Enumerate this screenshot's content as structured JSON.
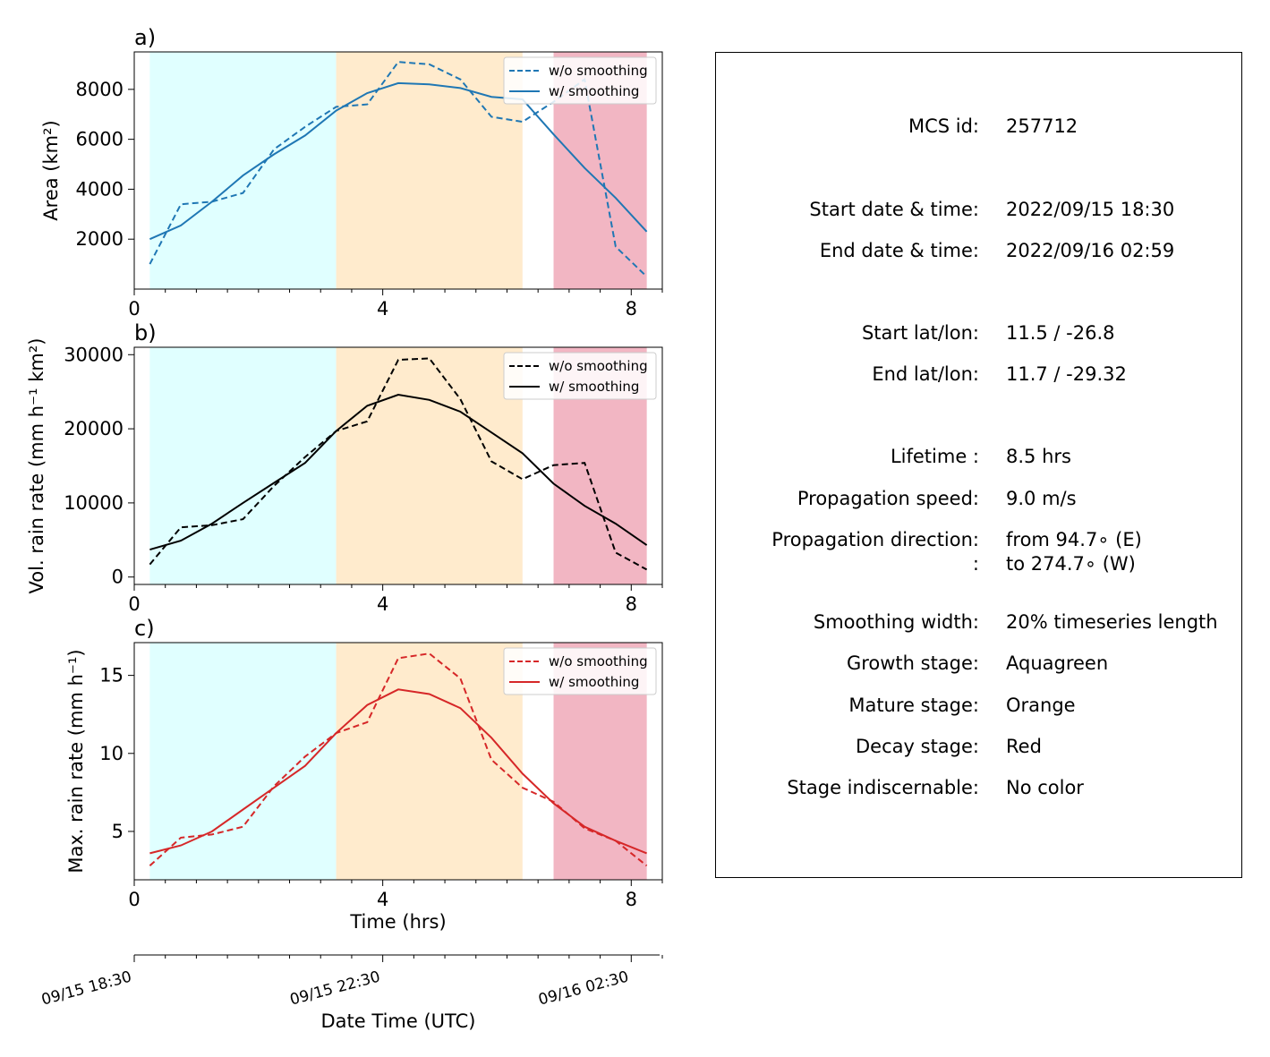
{
  "colors": {
    "growth": "#e0ffff",
    "mature": "#ffebcd",
    "decay": "#f2b6c3",
    "area": "#1f77b4",
    "volrain": "#000000",
    "maxrain": "#d62728"
  },
  "xaxis": {
    "label": "Time (hrs)",
    "ticks": [
      0,
      4,
      8
    ],
    "minor_ticks": [
      0.5,
      1,
      1.5,
      2,
      2.5,
      3,
      3.5,
      4.5,
      5,
      5.5,
      6,
      6.5,
      7,
      7.5,
      8.5
    ],
    "range": [
      0,
      8.5
    ]
  },
  "datetime_axis": {
    "label": "Date Time (UTC)",
    "tick_labels": [
      {
        "x": 0,
        "label": "09/15 18:30"
      },
      {
        "x": 4,
        "label": "09/15 22:30"
      },
      {
        "x": 8,
        "label": "09/16 02:30"
      }
    ],
    "minor_ticks": [
      0.5,
      1,
      1.5,
      2,
      2.5,
      3,
      3.5,
      4.5,
      5,
      5.5,
      6,
      6.5,
      7,
      7.5,
      8.5
    ]
  },
  "chart_data": [
    {
      "type": "line",
      "panel_label": "a)",
      "ylabel": "Area  (km²)",
      "xlim": [
        0,
        8.5
      ],
      "ylim": [
        0,
        9500
      ],
      "yticks": [
        2000,
        4000,
        6000,
        8000
      ],
      "stages": [
        {
          "name": "growth",
          "start": 0.25,
          "end": 3.25
        },
        {
          "name": "mature",
          "start": 3.25,
          "end": 6.25
        },
        {
          "name": "decay",
          "start": 6.75,
          "end": 8.25
        }
      ],
      "x": [
        0.25,
        0.75,
        1.25,
        1.75,
        2.25,
        2.75,
        3.25,
        3.75,
        4.25,
        4.75,
        5.25,
        5.75,
        6.25,
        6.75,
        7.25,
        7.75,
        8.25
      ],
      "series": [
        {
          "name": "w/o smoothing",
          "style": "dashed",
          "values": [
            1000,
            3400,
            3500,
            3850,
            5600,
            6500,
            7300,
            7400,
            9100,
            9000,
            8400,
            6900,
            6700,
            7500,
            8400,
            1700,
            500
          ]
        },
        {
          "name": "w/ smoothing",
          "style": "solid",
          "values": [
            2000,
            2550,
            3500,
            4550,
            5400,
            6150,
            7150,
            7850,
            8250,
            8200,
            8050,
            7700,
            7600,
            6200,
            4850,
            3650,
            2300
          ]
        }
      ],
      "legend_position": "upper right"
    },
    {
      "type": "line",
      "panel_label": "b)",
      "ylabel": "Vol. rain rate (mm h⁻¹ km²)",
      "xlim": [
        0,
        8.5
      ],
      "ylim": [
        -1000,
        31000
      ],
      "yticks": [
        0,
        10000,
        20000,
        30000
      ],
      "stages": [
        {
          "name": "growth",
          "start": 0.25,
          "end": 3.25
        },
        {
          "name": "mature",
          "start": 3.25,
          "end": 6.25
        },
        {
          "name": "decay",
          "start": 6.75,
          "end": 8.25
        }
      ],
      "x": [
        0.25,
        0.75,
        1.25,
        1.75,
        2.25,
        2.75,
        3.25,
        3.75,
        4.25,
        4.75,
        5.25,
        5.75,
        6.25,
        6.75,
        7.25,
        7.75,
        8.25
      ],
      "series": [
        {
          "name": "w/o smoothing",
          "style": "dashed",
          "values": [
            1700,
            6700,
            7000,
            7800,
            12300,
            16200,
            19700,
            21000,
            29300,
            29500,
            24000,
            15600,
            13200,
            15100,
            15400,
            3300,
            1000
          ]
        },
        {
          "name": "w/ smoothing",
          "style": "solid",
          "values": [
            3700,
            4900,
            7200,
            10000,
            12700,
            15400,
            19700,
            23100,
            24600,
            23900,
            22300,
            19500,
            16700,
            12600,
            9600,
            7200,
            4300
          ]
        }
      ],
      "legend_position": "upper right"
    },
    {
      "type": "line",
      "panel_label": "c)",
      "ylabel": "Max. rain rate  (mm h⁻¹)",
      "xlim": [
        0,
        8.5
      ],
      "ylim": [
        1.9,
        17.1
      ],
      "yticks": [
        5,
        10,
        15
      ],
      "stages": [
        {
          "name": "growth",
          "start": 0.25,
          "end": 3.25
        },
        {
          "name": "mature",
          "start": 3.25,
          "end": 6.25
        },
        {
          "name": "decay",
          "start": 6.75,
          "end": 8.25
        }
      ],
      "x": [
        0.25,
        0.75,
        1.25,
        1.75,
        2.25,
        2.75,
        3.25,
        3.75,
        4.25,
        4.75,
        5.25,
        5.75,
        6.25,
        6.75,
        7.25,
        7.75,
        8.25
      ],
      "series": [
        {
          "name": "w/o smoothing",
          "style": "dashed",
          "values": [
            2.8,
            4.6,
            4.8,
            5.3,
            7.9,
            9.8,
            11.3,
            12.0,
            16.1,
            16.4,
            14.8,
            9.6,
            7.8,
            6.9,
            5.2,
            4.4,
            2.8
          ]
        },
        {
          "name": "w/ smoothing",
          "style": "solid",
          "values": [
            3.6,
            4.1,
            5.0,
            6.4,
            7.8,
            9.2,
            11.3,
            13.1,
            14.1,
            13.8,
            12.9,
            11.0,
            8.7,
            6.8,
            5.3,
            4.4,
            3.6
          ]
        }
      ],
      "legend_position": "upper right"
    }
  ],
  "info": {
    "rows": [
      {
        "label": "MCS id:",
        "value": "257712"
      },
      {
        "label": "Start date & time:",
        "value": "2022/09/15 18:30"
      },
      {
        "label": "End date & time:",
        "value": "2022/09/16 02:59"
      },
      {
        "label": "Start lat/lon:",
        "value": "11.5 / -26.8"
      },
      {
        "label": "End lat/lon:",
        "value": "11.7 / -29.32"
      },
      {
        "label": "Lifetime :",
        "value": "8.5 hrs"
      },
      {
        "label": "Propagation speed:",
        "value": "9.0 m/s"
      },
      {
        "label": "Propagation direction:",
        "value": "from  94.7∘ (E)"
      },
      {
        "label": ":",
        "value": "to   274.7∘ (W)"
      },
      {
        "label": "Smoothing width:",
        "value": "20% timeseries length"
      },
      {
        "label": "Growth stage:",
        "value": "Aquagreen"
      },
      {
        "label": "Mature stage:",
        "value": "Orange"
      },
      {
        "label": "Decay stage:",
        "value": "Red"
      },
      {
        "label": "Stage indiscernable:",
        "value": "No color"
      }
    ]
  }
}
